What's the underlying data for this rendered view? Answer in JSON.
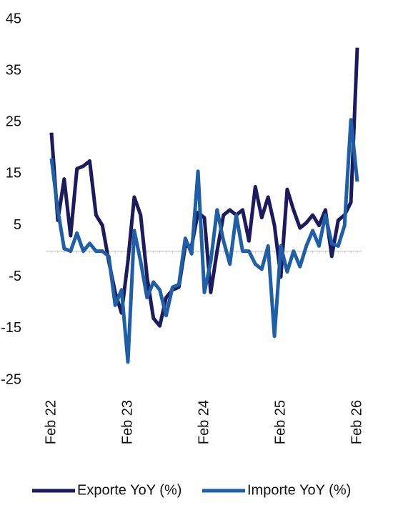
{
  "chart_data": {
    "type": "line",
    "categories": [
      "Feb 22",
      null,
      null,
      null,
      null,
      null,
      null,
      null,
      null,
      null,
      null,
      null,
      "Feb 23",
      null,
      null,
      null,
      null,
      null,
      null,
      null,
      null,
      null,
      null,
      null,
      "Feb 24",
      null,
      null,
      null,
      null,
      null,
      null,
      null,
      null,
      null,
      null,
      null,
      "Feb 25",
      null,
      null,
      null,
      null,
      null,
      null,
      null,
      null,
      null,
      null,
      null,
      "Feb 26"
    ],
    "series": [
      {
        "name": "Exporte YoY (%)",
        "color": "#1b1b5e",
        "values": [
          23,
          6,
          14,
          3,
          16,
          16.5,
          17.5,
          7,
          5,
          -2,
          -8,
          -12,
          -2,
          10.5,
          7,
          -5,
          -13,
          -14.5,
          -9,
          -7.5,
          -7,
          1,
          1,
          7.5,
          6.5,
          -8,
          0,
          7,
          8,
          7,
          8,
          2,
          12.5,
          6.5,
          10.5,
          5,
          -5,
          12,
          8,
          4.5,
          5.5,
          7,
          5,
          8,
          -1,
          6,
          7,
          9.5,
          39.5
        ]
      },
      {
        "name": "Importe YoY (%)",
        "color": "#1f5fa8",
        "values": [
          18,
          8,
          0.5,
          0,
          3.5,
          0,
          1.5,
          0,
          0,
          -1,
          -10.5,
          -7.5,
          -21.5,
          4,
          -2,
          -9,
          -6,
          -7.5,
          -12.5,
          -7,
          -6.5,
          2.5,
          -0.5,
          15.5,
          -8,
          -2,
          8,
          2,
          -2.5,
          7,
          0,
          0,
          -2.5,
          -3.5,
          1,
          -16.5,
          1,
          -4,
          0,
          -3,
          1,
          4,
          1,
          7,
          1.5,
          1,
          5,
          25.5,
          13.5
        ]
      }
    ],
    "ylim": [
      -25,
      45
    ],
    "yticks": [
      -25,
      -15,
      -5,
      5,
      15,
      25,
      35,
      45
    ],
    "grid": false,
    "legend": "bottom"
  }
}
